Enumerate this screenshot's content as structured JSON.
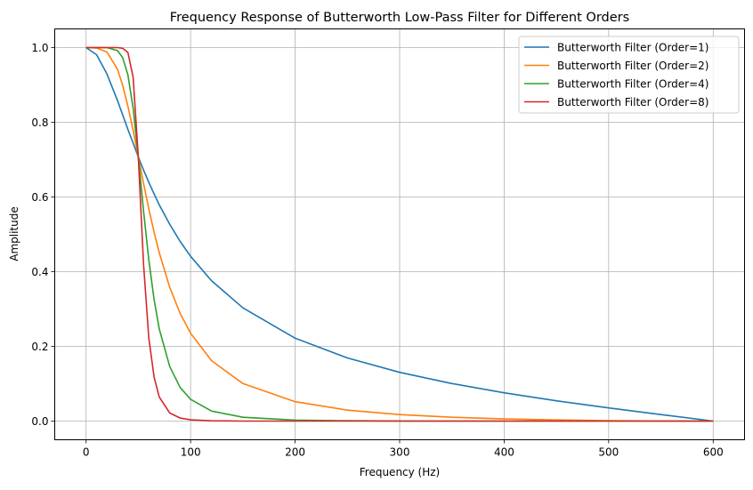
{
  "chart_data": {
    "type": "line",
    "title": "Frequency Response of Butterworth Low-Pass Filter for Different Orders",
    "xlabel": "Frequency (Hz)",
    "ylabel": "Amplitude",
    "xlim": [
      -30,
      630
    ],
    "ylim": [
      -0.05,
      1.05
    ],
    "xticks": [
      0,
      100,
      200,
      300,
      400,
      500,
      600
    ],
    "xtick_labels": [
      "0",
      "100",
      "200",
      "300",
      "400",
      "500",
      "600"
    ],
    "yticks": [
      0,
      0.2,
      0.4,
      0.6,
      0.8,
      1.0
    ],
    "ytick_labels": [
      "0.0",
      "0.2",
      "0.4",
      "0.6",
      "0.8",
      "1.0"
    ],
    "grid": true,
    "legend_position": "top-right",
    "x": [
      0,
      10,
      20,
      30,
      35,
      40,
      45,
      50,
      55,
      60,
      65,
      70,
      80,
      90,
      100,
      120,
      150,
      200,
      250,
      300,
      350,
      400,
      450,
      500,
      550,
      600
    ],
    "series": [
      {
        "name": "Butterworth Filter (Order=1)",
        "color": "#1f77b4",
        "values": [
          1,
          0.981,
          0.929,
          0.858,
          0.82,
          0.781,
          0.744,
          0.707,
          0.672,
          0.639,
          0.608,
          0.579,
          0.527,
          0.481,
          0.441,
          0.376,
          0.303,
          0.222,
          0.169,
          0.1305,
          0.1005,
          0.0758,
          0.0544,
          0.0353,
          0.0173,
          0
        ]
      },
      {
        "name": "Butterworth Filter (Order=2)",
        "color": "#ff7f0e",
        "values": [
          1,
          0.999,
          0.988,
          0.942,
          0.899,
          0.843,
          0.778,
          0.707,
          0.636,
          0.568,
          0.506,
          0.451,
          0.358,
          0.288,
          0.235,
          0.162,
          0.1005,
          0.0519,
          0.0294,
          0.0173,
          0.0102,
          0.0058,
          0.003,
          0.0012,
          0.0003,
          0
        ]
      },
      {
        "name": "Butterworth Filter (Order=4)",
        "color": "#2ca02c",
        "values": [
          1,
          1,
          1,
          0.992,
          0.973,
          0.927,
          0.837,
          0.707,
          0.562,
          0.431,
          0.326,
          0.247,
          0.146,
          0.09,
          0.0582,
          0.027,
          0.0102,
          0.0027,
          0.0009,
          0.0003,
          0.0001,
          0,
          0,
          0,
          0,
          0
        ]
      },
      {
        "name": "Butterworth Filter (Order=8)",
        "color": "#d62728",
        "values": [
          1,
          1,
          1,
          1,
          0.998,
          0.987,
          0.92,
          0.707,
          0.419,
          0.222,
          0.118,
          0.0647,
          0.0217,
          0.0082,
          0.0034,
          0.0007,
          0.0001,
          0,
          0,
          0,
          0,
          0,
          0,
          0,
          0,
          0
        ]
      }
    ]
  }
}
